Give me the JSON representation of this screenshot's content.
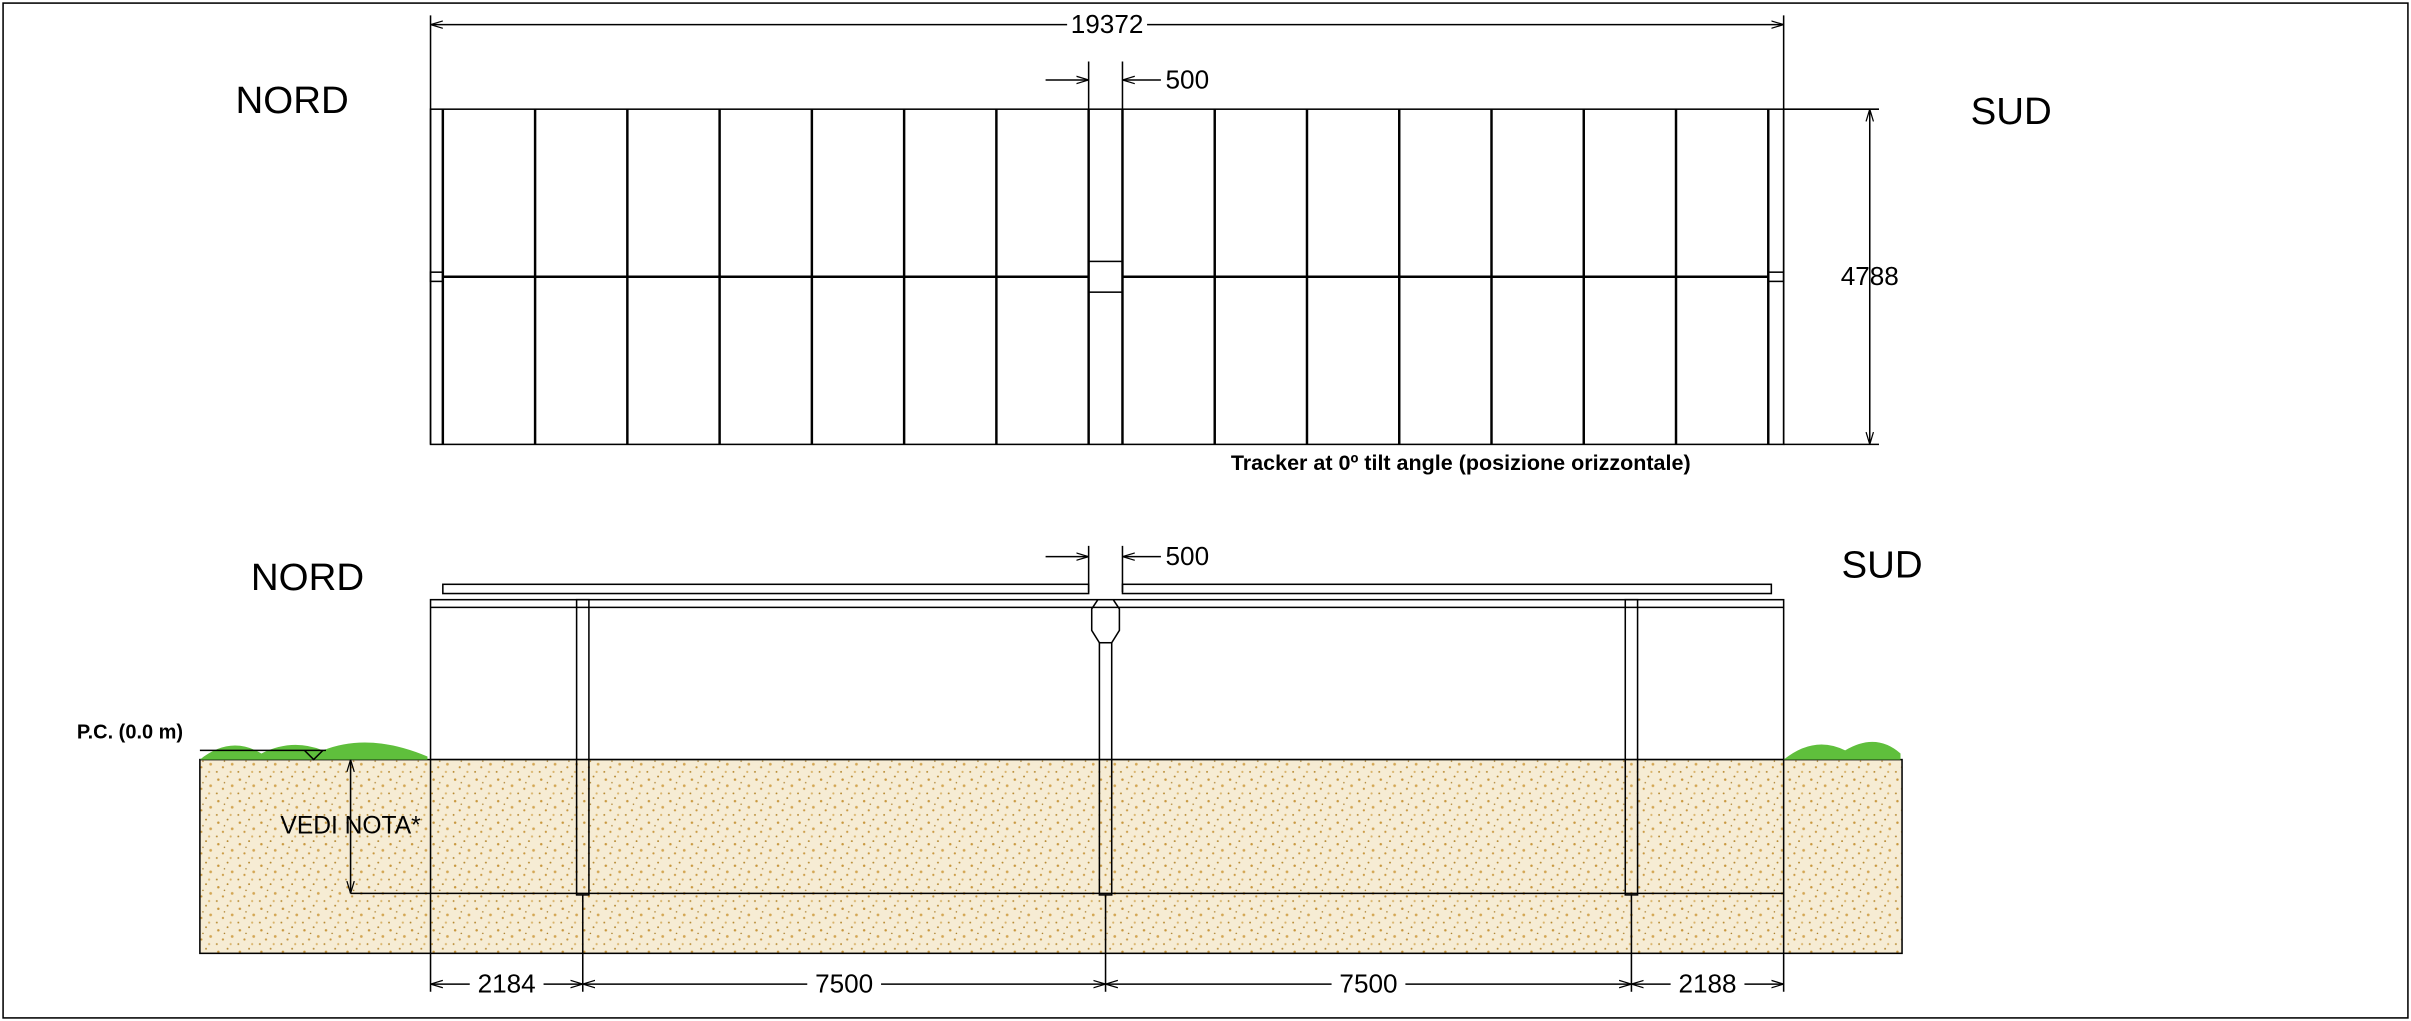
{
  "top_view": {
    "total_length": 19372,
    "gap": 500,
    "north": "NORD",
    "south": "SUD",
    "width": 4788,
    "caption": "Tracker at 0º tilt angle (posizione orizzontale)"
  },
  "side_view": {
    "north": "NORD",
    "south": "SUD",
    "gap": 500,
    "ground_level": "P.C. (0.0 m)",
    "note": "VEDI NOTA*",
    "spans": [
      2184,
      7500,
      7500,
      2188
    ]
  }
}
